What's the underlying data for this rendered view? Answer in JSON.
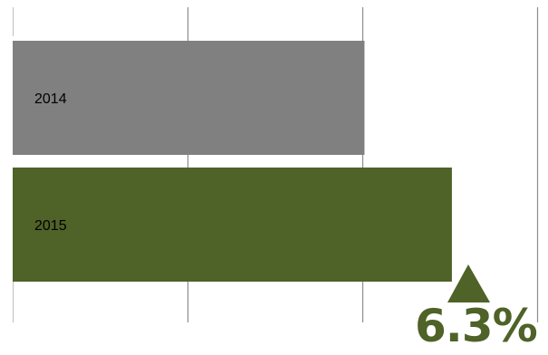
{
  "chart_data": {
    "type": "bar",
    "orientation": "horizontal",
    "categories": [
      "2014",
      "2015"
    ],
    "values": [
      80.5,
      100.5
    ],
    "colors": [
      "#808080",
      "#4f6228"
    ],
    "xlim": [
      0,
      120
    ],
    "grid": true,
    "title": "",
    "xlabel": "",
    "ylabel": "",
    "annotation": {
      "text": "6.3%",
      "direction": "up",
      "color": "#4f6228"
    }
  }
}
